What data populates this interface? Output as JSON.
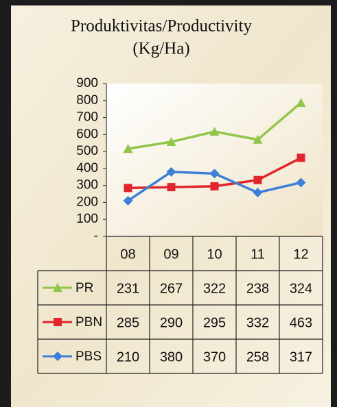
{
  "chart_data": {
    "type": "line",
    "title": "Produktivitas/Productivity",
    "subtitle": "(Kg/Ha)",
    "categories": [
      "08",
      "09",
      "10",
      "11",
      "12"
    ],
    "series": [
      {
        "name": "PR",
        "color": "#92c64a",
        "marker": "triangle",
        "stacked": true,
        "values": [
          231,
          267,
          322,
          238,
          324
        ]
      },
      {
        "name": "PBN",
        "color": "#e0262c",
        "marker": "square",
        "stacked": true,
        "values": [
          285,
          290,
          295,
          332,
          463
        ]
      },
      {
        "name": "PBS",
        "color": "#3d7fd6",
        "marker": "diamond",
        "values": [
          210,
          380,
          370,
          258,
          317
        ]
      }
    ],
    "ylim": [
      0,
      900
    ],
    "yticks": [
      {
        "value": 0,
        "label": "-"
      },
      100,
      200,
      300,
      400,
      500,
      600,
      700,
      800,
      900
    ],
    "data_table": true
  }
}
